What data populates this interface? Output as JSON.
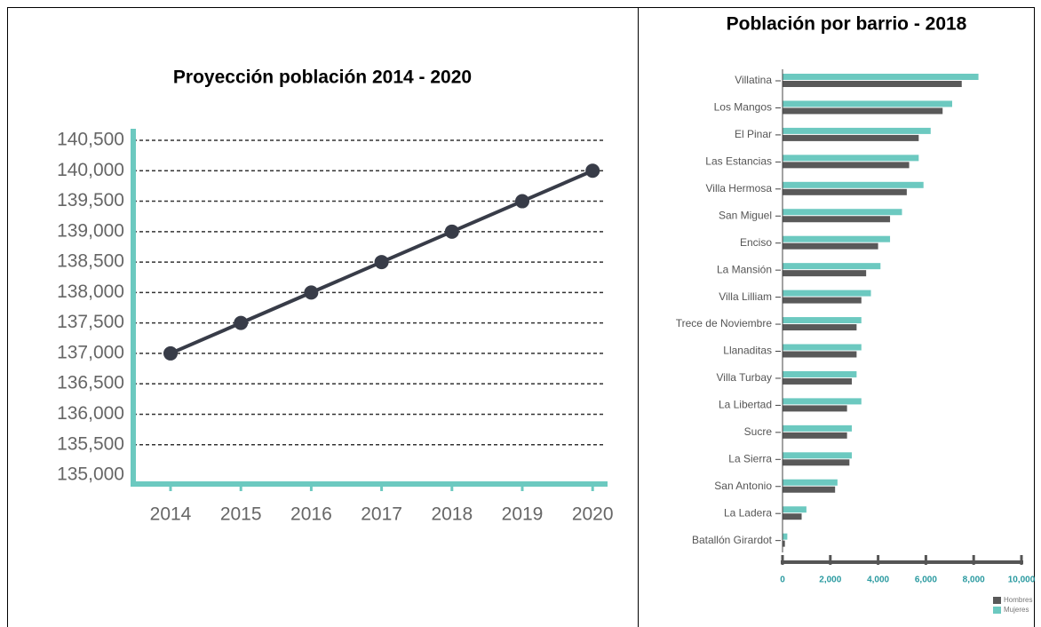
{
  "chart_data": [
    {
      "type": "line",
      "title": "Proyección población 2014 - 2020",
      "categories": [
        "2014",
        "2015",
        "2016",
        "2017",
        "2018",
        "2019",
        "2020"
      ],
      "values": [
        137000,
        137500,
        138000,
        138500,
        139000,
        139500,
        140000
      ],
      "color": "#383c48",
      "axis_color": "#6cc9c0",
      "ylim": [
        135000,
        140500
      ],
      "yticks": [
        {
          "value": 135000,
          "label": "135,000"
        },
        {
          "value": 135500,
          "label": "135,500"
        },
        {
          "value": 136000,
          "label": "136,000"
        },
        {
          "value": 136500,
          "label": "136,500"
        },
        {
          "value": 137000,
          "label": "137,000"
        },
        {
          "value": 137500,
          "label": "137,500"
        },
        {
          "value": 138000,
          "label": "138,000"
        },
        {
          "value": 138500,
          "label": "138,500"
        },
        {
          "value": 139000,
          "label": "139,000"
        },
        {
          "value": 139500,
          "label": "139,500"
        },
        {
          "value": 140000,
          "label": "140,000"
        },
        {
          "value": 140500,
          "label": "140,500"
        }
      ],
      "grid": true
    },
    {
      "type": "bar",
      "orientation": "horizontal",
      "title": "Población por barrio - 2018",
      "categories": [
        "Villatina",
        "Los Mangos",
        "El Pinar",
        "Las Estancias",
        "Villa Hermosa",
        "San Miguel",
        "Enciso",
        "La Mansión",
        "Villa Lilliam",
        "Trece de Noviembre",
        "Llanaditas",
        "Villa Turbay",
        "La Libertad",
        "Sucre",
        "La Sierra",
        "San Antonio",
        "La Ladera",
        "Batallón Girardot"
      ],
      "series": [
        {
          "name": "Mujeres",
          "color": "#6cc9c0",
          "values": [
            8200,
            7100,
            6200,
            5700,
            5900,
            5000,
            4500,
            4100,
            3700,
            3300,
            3300,
            3100,
            3300,
            2900,
            2900,
            2300,
            1000,
            200
          ]
        },
        {
          "name": "Hombres",
          "color": "#595959",
          "values": [
            7500,
            6700,
            5700,
            5300,
            5200,
            4500,
            4000,
            3500,
            3300,
            3100,
            3100,
            2900,
            2700,
            2700,
            2800,
            2200,
            800,
            100
          ]
        }
      ],
      "xlim": [
        0,
        10000
      ],
      "xticks": [
        0,
        {
          "value": 2000,
          "label": "2,000"
        },
        {
          "value": 4000,
          "label": "4,000"
        },
        {
          "value": 6000,
          "label": "6,000"
        },
        {
          "value": 8000,
          "label": "8,000"
        },
        {
          "value": 10000,
          "label": "10,000"
        }
      ],
      "legend": "bottom right"
    }
  ]
}
